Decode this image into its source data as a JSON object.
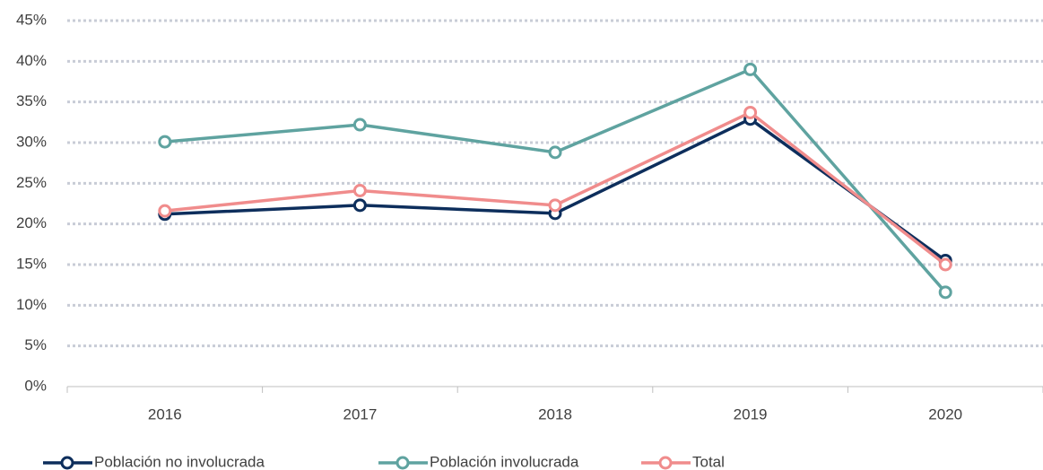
{
  "chart_data": {
    "type": "line",
    "categories": [
      "2016",
      "2017",
      "2018",
      "2019",
      "2020"
    ],
    "series": [
      {
        "name": "Población no involucrada",
        "color": "#0d2e5c",
        "values": [
          21.2,
          22.3,
          21.3,
          32.9,
          15.5
        ]
      },
      {
        "name": "Población involucrada",
        "color": "#5fa3a0",
        "values": [
          30.1,
          32.2,
          28.8,
          39.0,
          11.6
        ]
      },
      {
        "name": "Total",
        "color": "#f08c8c",
        "values": [
          21.6,
          24.1,
          22.3,
          33.7,
          15.0
        ]
      }
    ],
    "ylim": [
      0,
      45
    ],
    "yticks": [
      {
        "value": 0,
        "label": "0%"
      },
      {
        "value": 5,
        "label": "5%"
      },
      {
        "value": 10,
        "label": "10%"
      },
      {
        "value": 15,
        "label": "15%"
      },
      {
        "value": 20,
        "label": "20%"
      },
      {
        "value": 25,
        "label": "25%"
      },
      {
        "value": 30,
        "label": "30%"
      },
      {
        "value": 35,
        "label": "35%"
      },
      {
        "value": 40,
        "label": "40%"
      },
      {
        "value": 45,
        "label": "45%"
      }
    ],
    "grid": true
  }
}
